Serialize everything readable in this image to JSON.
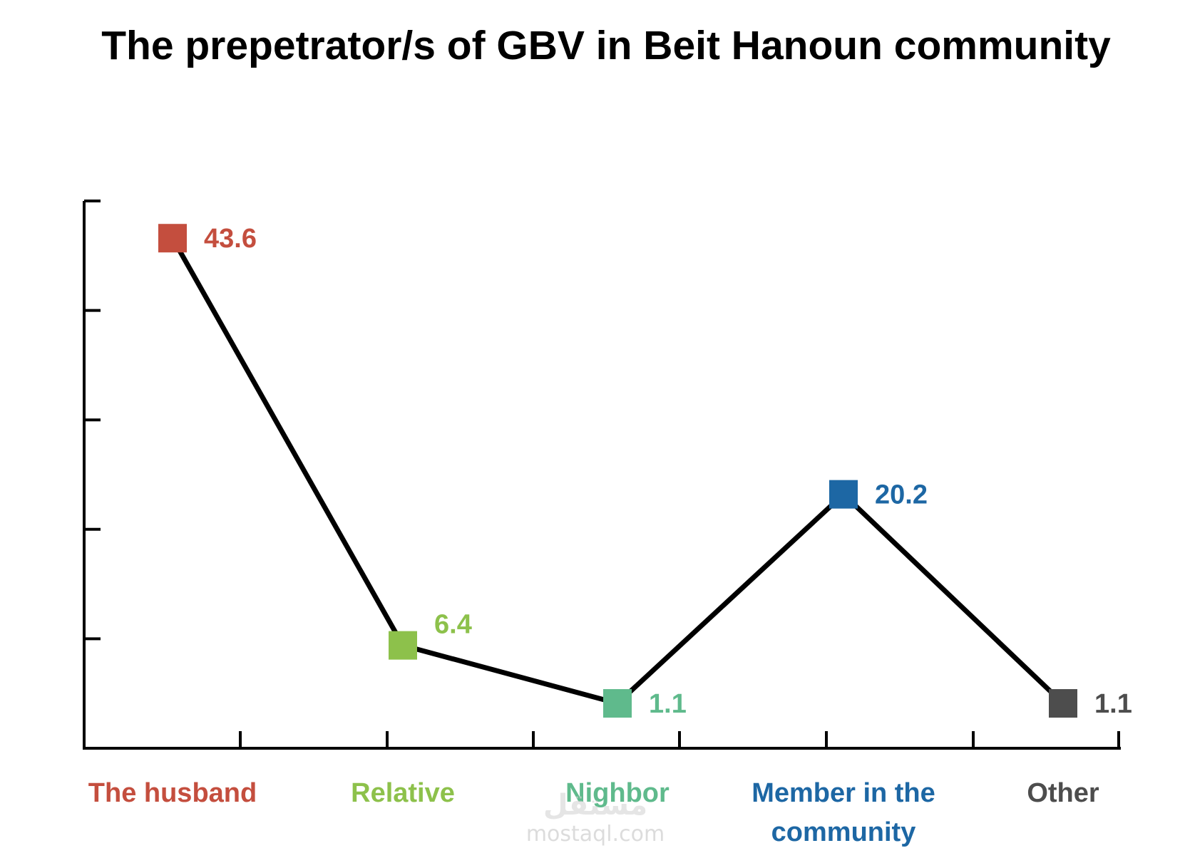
{
  "chart_data": {
    "type": "line",
    "title": "The prepetrator/s of GBV in Beit Hanoun community",
    "categories": [
      "The husband",
      "Relative",
      "Nighbor",
      "Member in the community",
      "Other"
    ],
    "category_lines": [
      [
        "The husband"
      ],
      [
        "Relative"
      ],
      [
        "Nighbor"
      ],
      [
        "Member in the",
        "community"
      ],
      [
        "Other"
      ]
    ],
    "values": [
      43.6,
      6.4,
      1.1,
      20.2,
      1.1
    ],
    "value_labels": [
      "43.6",
      "6.4",
      "1.1",
      "20.2",
      "1.1"
    ],
    "colors": [
      "#c44e3e",
      "#8dc14b",
      "#5fba8c",
      "#1d67a4",
      "#4d4d4d"
    ],
    "line_color": "#000000",
    "marker": "square",
    "xlabel": "",
    "ylabel": "",
    "ylim": [
      -3,
      47
    ],
    "y_ticks": [
      -3,
      7,
      17,
      27,
      37,
      47
    ],
    "grid": false,
    "legend": "none"
  },
  "watermark": {
    "mark_text": "مستقل",
    "site_text": "mostaql.com"
  }
}
